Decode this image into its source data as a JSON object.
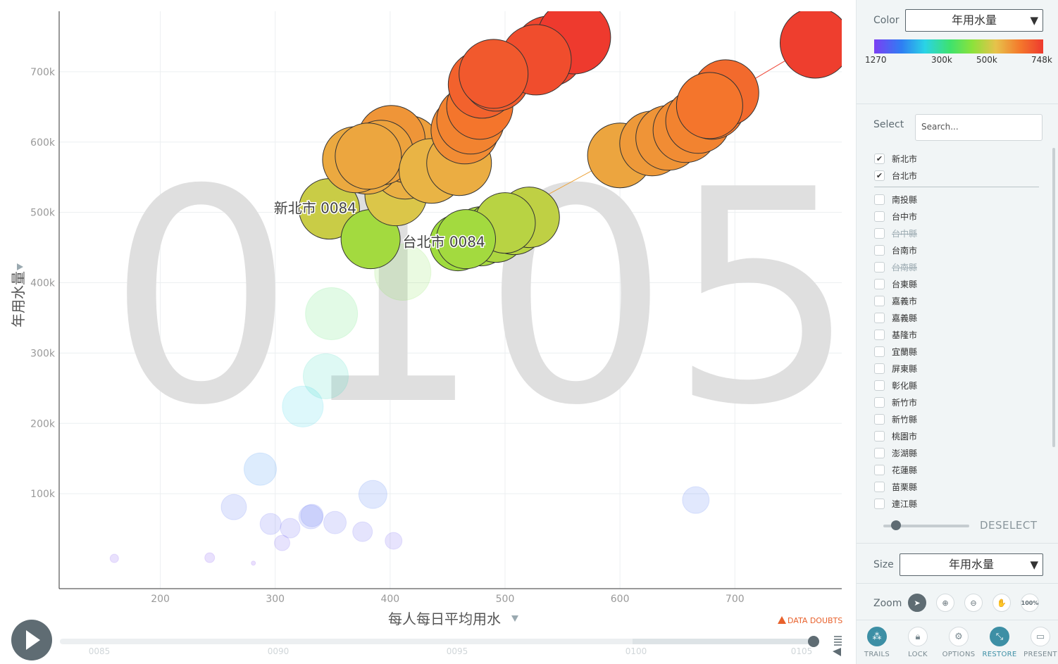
{
  "chart_data": {
    "type": "scatter",
    "title": "",
    "xlabel": "每人每日平均用水",
    "ylabel": "年用水量",
    "xlim": [
      112,
      793
    ],
    "ylim": [
      -35000,
      786000
    ],
    "x_ticks": [
      200,
      300,
      400,
      500,
      600,
      700
    ],
    "x_tick_labels": [
      "200",
      "300",
      "400",
      "500",
      "600",
      "700"
    ],
    "y_ticks": [
      100000,
      200000,
      300000,
      400000,
      500000,
      600000,
      700000
    ],
    "y_tick_labels": [
      "100k",
      "200k",
      "300k",
      "400k",
      "500k",
      "600k",
      "700k"
    ],
    "year_watermark": "0105",
    "grid": true,
    "color_scale": {
      "label": "年用水量",
      "min_label": "1270",
      "mid_labels": [
        "300k",
        "500k"
      ],
      "max_label": "748k"
    },
    "trails": [
      {
        "name": "新北市",
        "label": "新北市 0084",
        "points": [
          {
            "x": 347,
            "y": 505000,
            "r": 43
          },
          {
            "x": 383,
            "y": 462000,
            "r": 42
          },
          {
            "x": 405,
            "y": 525000,
            "r": 44
          },
          {
            "x": 413,
            "y": 566000,
            "r": 47
          },
          {
            "x": 415,
            "y": 590000,
            "r": 48
          },
          {
            "x": 401,
            "y": 604000,
            "r": 48
          },
          {
            "x": 380,
            "y": 573000,
            "r": 47
          },
          {
            "x": 370,
            "y": 575000,
            "r": 47
          },
          {
            "x": 392,
            "y": 585000,
            "r": 46
          },
          {
            "x": 381,
            "y": 580000,
            "r": 47
          },
          {
            "x": 436,
            "y": 559000,
            "r": 46
          },
          {
            "x": 460,
            "y": 570000,
            "r": 46
          },
          {
            "x": 465,
            "y": 617000,
            "r": 48
          },
          {
            "x": 470,
            "y": 631000,
            "r": 48
          },
          {
            "x": 478,
            "y": 651000,
            "r": 47
          },
          {
            "x": 480,
            "y": 682000,
            "r": 48
          },
          {
            "x": 492,
            "y": 692000,
            "r": 48
          },
          {
            "x": 538,
            "y": 729000,
            "r": 50
          },
          {
            "x": 560,
            "y": 749000,
            "r": 52
          },
          {
            "x": 527,
            "y": 717000,
            "r": 50
          },
          {
            "x": 490,
            "y": 697000,
            "r": 49
          }
        ]
      },
      {
        "name": "台北市",
        "label": "台北市 0084",
        "points": [
          {
            "x": 459,
            "y": 457000,
            "r": 40
          },
          {
            "x": 479,
            "y": 466000,
            "r": 42
          },
          {
            "x": 492,
            "y": 472000,
            "r": 43
          },
          {
            "x": 508,
            "y": 483000,
            "r": 43
          },
          {
            "x": 521,
            "y": 493000,
            "r": 43
          },
          {
            "x": 500,
            "y": 485000,
            "r": 43
          },
          {
            "x": 466,
            "y": 462000,
            "r": 42
          },
          {
            "x": 600,
            "y": 581000,
            "r": 46
          },
          {
            "x": 628,
            "y": 598000,
            "r": 46
          },
          {
            "x": 642,
            "y": 606000,
            "r": 46
          },
          {
            "x": 657,
            "y": 617000,
            "r": 46
          },
          {
            "x": 668,
            "y": 630000,
            "r": 46
          },
          {
            "x": 680,
            "y": 651000,
            "r": 47
          },
          {
            "x": 692,
            "y": 670000,
            "r": 47
          },
          {
            "x": 678,
            "y": 652000,
            "r": 47
          },
          {
            "x": 770,
            "y": 741000,
            "r": 50
          }
        ]
      }
    ],
    "unselected_points": [
      {
        "x": 411,
        "y": 415000,
        "r": 40
      },
      {
        "x": 349,
        "y": 356000,
        "r": 37
      },
      {
        "x": 344,
        "y": 267000,
        "r": 32
      },
      {
        "x": 324,
        "y": 224000,
        "r": 29
      },
      {
        "x": 287,
        "y": 135000,
        "r": 23
      },
      {
        "x": 264,
        "y": 81000,
        "r": 18
      },
      {
        "x": 296,
        "y": 57000,
        "r": 15
      },
      {
        "x": 313,
        "y": 51000,
        "r": 14
      },
      {
        "x": 306,
        "y": 30000,
        "r": 11
      },
      {
        "x": 331,
        "y": 67000,
        "r": 17
      },
      {
        "x": 332,
        "y": 69000,
        "r": 16
      },
      {
        "x": 352,
        "y": 59000,
        "r": 16
      },
      {
        "x": 376,
        "y": 46000,
        "r": 14
      },
      {
        "x": 385,
        "y": 99000,
        "r": 20
      },
      {
        "x": 403,
        "y": 33000,
        "r": 12
      },
      {
        "x": 160,
        "y": 8000,
        "r": 6
      },
      {
        "x": 243,
        "y": 9000,
        "r": 7
      },
      {
        "x": 281,
        "y": 1270,
        "r": 3
      },
      {
        "x": 666,
        "y": 91000,
        "r": 19
      }
    ]
  },
  "timeline": {
    "play_icon": "play-icon",
    "labels": [
      "0085",
      "0090",
      "0095",
      "0100",
      "0105"
    ],
    "current": "0105",
    "progress": 1.0
  },
  "data_doubts": "DATA DOUBTS",
  "sidebar": {
    "color_label": "Color",
    "color_value": "年用水量",
    "select_label": "Select",
    "search_placeholder": "Search...",
    "selected": [
      "新北市",
      "台北市"
    ],
    "items": [
      {
        "name": "南投縣",
        "struck": false
      },
      {
        "name": "台中市",
        "struck": false
      },
      {
        "name": "台中縣",
        "struck": true
      },
      {
        "name": "台南市",
        "struck": false
      },
      {
        "name": "台南縣",
        "struck": true
      },
      {
        "name": "台東縣",
        "struck": false
      },
      {
        "name": "嘉義市",
        "struck": false
      },
      {
        "name": "嘉義縣",
        "struck": false
      },
      {
        "name": "基隆市",
        "struck": false
      },
      {
        "name": "宜蘭縣",
        "struck": false
      },
      {
        "name": "屏東縣",
        "struck": false
      },
      {
        "name": "彰化縣",
        "struck": false
      },
      {
        "name": "新竹市",
        "struck": false
      },
      {
        "name": "新竹縣",
        "struck": false
      },
      {
        "name": "桃園市",
        "struck": false
      },
      {
        "name": "澎湖縣",
        "struck": false
      },
      {
        "name": "花蓮縣",
        "struck": false
      },
      {
        "name": "苗栗縣",
        "struck": false
      },
      {
        "name": "連江縣",
        "struck": false
      }
    ],
    "deselect": "DESELECT",
    "opacity_level": 0.15,
    "size_label": "Size",
    "size_value": "年用水量",
    "zoom_label": "Zoom",
    "zoom_100": "100%",
    "buttons": [
      {
        "label": "TRAILS",
        "icon": "trails-icon"
      },
      {
        "label": "LOCK",
        "icon": "lock-icon"
      },
      {
        "label": "OPTIONS",
        "icon": "gear-icon"
      },
      {
        "label": "RESTORE",
        "icon": "restore-icon"
      },
      {
        "label": "PRESENT",
        "icon": "present-icon"
      }
    ]
  }
}
